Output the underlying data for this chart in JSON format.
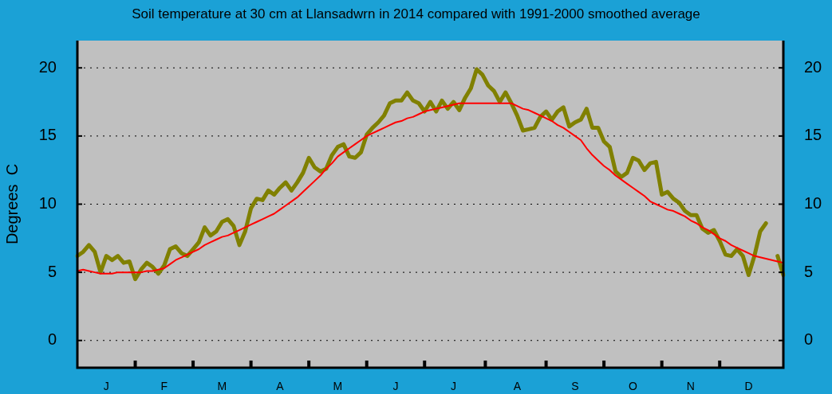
{
  "chart_data": {
    "type": "line",
    "title": "Soil temperature at 30 cm at Llansadwrn in 2014 compared with 1991-2000 smoothed average",
    "ylabel": "Degrees  C",
    "categories": [
      null,
      null,
      null,
      null,
      null,
      "J",
      null,
      null,
      null,
      null,
      null,
      null,
      null,
      null,
      null,
      "F",
      null,
      null,
      null,
      null,
      null,
      null,
      null,
      null,
      null,
      "M",
      null,
      null,
      null,
      null,
      null,
      null,
      null,
      null,
      null,
      "A",
      null,
      null,
      null,
      null,
      null,
      null,
      null,
      null,
      null,
      "M",
      null,
      null,
      null,
      null,
      null,
      null,
      null,
      null,
      null,
      "J",
      null,
      null,
      null,
      null,
      null,
      null,
      null,
      null,
      null,
      "J",
      null,
      null,
      null,
      null,
      null,
      null,
      null,
      null,
      null,
      null,
      "A",
      null,
      null,
      null,
      null,
      null,
      null,
      null,
      null,
      null,
      "S",
      null,
      null,
      null,
      null,
      null,
      null,
      null,
      null,
      null,
      "O",
      null,
      null,
      null,
      null,
      null,
      null,
      null,
      null,
      null,
      "N",
      null,
      null,
      null,
      null,
      null,
      null,
      null,
      null,
      null,
      "D",
      null,
      null,
      null,
      null,
      null,
      null
    ],
    "ylim": [
      -2,
      22
    ],
    "yticks": [
      0,
      5,
      10,
      15,
      20
    ],
    "y2lim": [
      -2,
      22
    ],
    "y2ticks": [
      0,
      5,
      10,
      15,
      20
    ],
    "grid": "y",
    "legend": false,
    "series": [
      {
        "color": "#ff0000",
        "values": [
          5.1,
          5.2,
          5.1,
          5.0,
          4.9,
          4.9,
          4.9,
          5.0,
          5.0,
          5.0,
          5.0,
          5.0,
          5.1,
          5.1,
          5.2,
          5.3,
          5.6,
          5.9,
          6.1,
          6.3,
          6.5,
          6.7,
          7.0,
          7.2,
          7.4,
          7.6,
          7.7,
          7.9,
          8.1,
          8.3,
          8.5,
          8.7,
          8.9,
          9.1,
          9.3,
          9.6,
          9.9,
          10.2,
          10.5,
          10.9,
          11.3,
          11.7,
          12.1,
          12.6,
          13.0,
          13.5,
          13.8,
          14.1,
          14.4,
          14.7,
          15.0,
          15.2,
          15.4,
          15.6,
          15.8,
          16.0,
          16.1,
          16.3,
          16.4,
          16.6,
          16.8,
          16.9,
          17.0,
          17.1,
          17.2,
          17.3,
          17.4,
          17.4,
          17.4,
          17.4,
          17.4,
          17.4,
          17.4,
          17.4,
          17.4,
          17.4,
          17.2,
          17.0,
          16.9,
          16.7,
          16.5,
          16.3,
          16.1,
          15.8,
          15.6,
          15.3,
          15.0,
          14.7,
          14.1,
          13.6,
          13.2,
          12.8,
          12.5,
          12.1,
          11.8,
          11.5,
          11.2,
          10.9,
          10.6,
          10.2,
          10.0,
          9.8,
          9.6,
          9.5,
          9.3,
          9.1,
          8.8,
          8.6,
          8.3,
          8.1,
          7.8,
          7.5,
          7.3,
          7.0,
          6.8,
          6.6,
          6.4,
          6.2,
          6.1,
          6.0,
          5.9,
          5.8,
          5.7
        ]
      },
      {
        "color": "#808000",
        "values": [
          6.2,
          6.5,
          7.0,
          6.5,
          5.0,
          6.2,
          5.9,
          6.2,
          5.7,
          5.8,
          4.5,
          5.2,
          5.7,
          5.4,
          4.9,
          5.5,
          6.7,
          6.9,
          6.4,
          6.2,
          6.7,
          7.2,
          8.3,
          7.7,
          8.0,
          8.7,
          8.9,
          8.4,
          7.0,
          8.0,
          9.7,
          10.4,
          10.3,
          11.0,
          10.7,
          11.2,
          11.6,
          11.0,
          11.6,
          12.3,
          13.4,
          12.7,
          12.4,
          12.6,
          13.6,
          14.2,
          14.4,
          13.5,
          13.4,
          13.8,
          15.1,
          15.6,
          16.0,
          16.5,
          17.4,
          17.6,
          17.6,
          18.2,
          17.6,
          17.4,
          16.8,
          17.5,
          16.8,
          17.6,
          17.0,
          17.5,
          16.9,
          17.8,
          18.5,
          19.9,
          19.5,
          18.7,
          18.3,
          17.5,
          18.2,
          17.4,
          16.5,
          15.4,
          15.5,
          15.6,
          16.4,
          16.8,
          16.2,
          16.8,
          17.1,
          15.7,
          16.0,
          16.2,
          17.0,
          15.6,
          15.6,
          14.6,
          14.2,
          12.4,
          12.0,
          12.3,
          13.4,
          13.2,
          12.5,
          13.0,
          13.1,
          10.7,
          10.9,
          10.4,
          10.1,
          9.5,
          9.2,
          9.2,
          8.2,
          7.9,
          8.1,
          7.3,
          6.3,
          6.2,
          6.7,
          6.2,
          4.8,
          6.2,
          8.0,
          8.6,
          null,
          6.2,
          4.8
        ]
      }
    ]
  }
}
